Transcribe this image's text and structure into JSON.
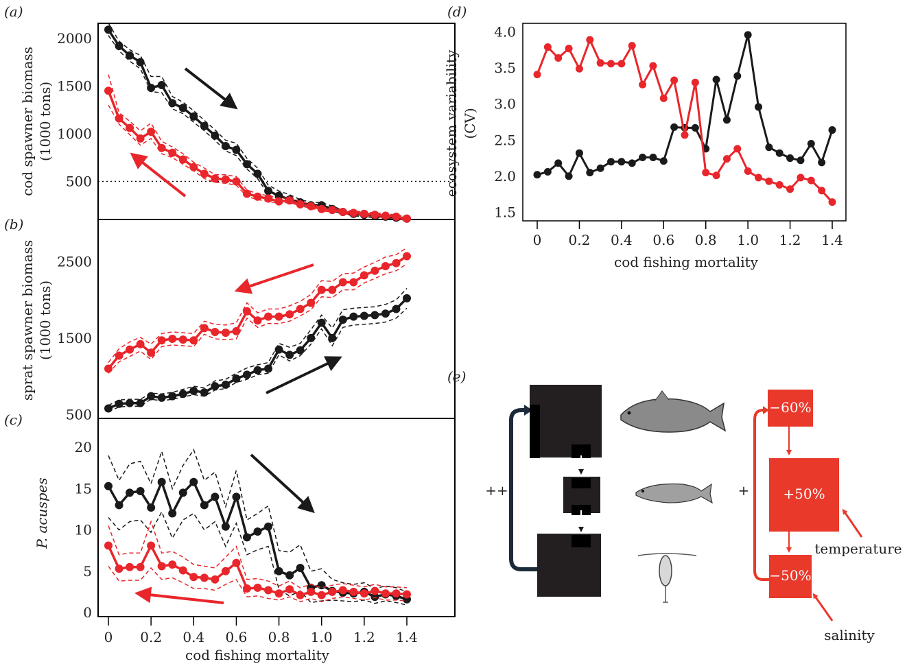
{
  "panels": {
    "a_label": "(a)",
    "b_label": "(b)",
    "c_label": "(c)",
    "d_label": "(d)",
    "e_label": "(e)"
  },
  "colors": {
    "black_series": "#1a1a1a",
    "red_series": "#e8262b",
    "box_black": "#231f20",
    "box_red": "#e8392b"
  },
  "x_values": [
    0,
    0.05,
    0.1,
    0.15,
    0.2,
    0.25,
    0.3,
    0.35,
    0.4,
    0.45,
    0.5,
    0.55,
    0.6,
    0.65,
    0.7,
    0.75,
    0.8,
    0.85,
    0.9,
    0.95,
    1.0,
    1.05,
    1.1,
    1.15,
    1.2,
    1.25,
    1.3,
    1.35,
    1.4
  ],
  "chart_data": [
    {
      "id": "a",
      "type": "line",
      "ylabel_line1": "cod spawner biomass",
      "ylabel_line2": "(1000 tons)",
      "ylim": [
        0,
        2200
      ],
      "yticks": [
        500,
        1000,
        1500,
        2000
      ],
      "reference_line": 500,
      "series": [
        {
          "color": "black",
          "values": [
            2090,
            1920,
            1820,
            1750,
            1480,
            1510,
            1320,
            1270,
            1180,
            1080,
            980,
            870,
            830,
            680,
            580,
            400,
            350,
            310,
            280,
            250,
            250,
            210,
            180,
            160,
            150,
            140,
            130,
            120,
            110
          ],
          "upper": [
            2160,
            1970,
            1880,
            1820,
            1600,
            1600,
            1390,
            1330,
            1240,
            1140,
            1040,
            930,
            900,
            740,
            640,
            460,
            400,
            360,
            310,
            280,
            280,
            240,
            200,
            180,
            170,
            160,
            150,
            140,
            130
          ],
          "lower": [
            2030,
            1870,
            1760,
            1680,
            1440,
            1430,
            1260,
            1210,
            1120,
            1030,
            930,
            820,
            770,
            630,
            530,
            360,
            310,
            280,
            250,
            220,
            220,
            190,
            160,
            140,
            130,
            120,
            110,
            100,
            90
          ]
        },
        {
          "color": "red",
          "values": [
            1450,
            1160,
            1060,
            950,
            1020,
            850,
            800,
            730,
            650,
            580,
            530,
            520,
            500,
            370,
            340,
            320,
            290,
            300,
            260,
            240,
            210,
            200,
            180,
            170,
            160,
            150,
            140,
            130,
            110
          ],
          "upper": [
            1620,
            1220,
            1130,
            1030,
            1110,
            920,
            860,
            790,
            700,
            640,
            570,
            570,
            550,
            410,
            370,
            350,
            320,
            330,
            290,
            260,
            230,
            220,
            200,
            190,
            180,
            170,
            160,
            150,
            130
          ],
          "lower": [
            1300,
            1100,
            990,
            880,
            950,
            790,
            750,
            680,
            610,
            530,
            490,
            480,
            460,
            340,
            310,
            290,
            270,
            280,
            240,
            220,
            190,
            180,
            160,
            150,
            140,
            130,
            120,
            110,
            90
          ]
        }
      ]
    },
    {
      "id": "b",
      "type": "line",
      "ylabel_line1": "sprat spawner biomass",
      "ylabel_line2": "(1000 tons)",
      "ylim": [
        450,
        3050
      ],
      "yticks": [
        500,
        1500,
        2500
      ],
      "series": [
        {
          "color": "black",
          "values": [
            580,
            640,
            650,
            650,
            740,
            720,
            740,
            770,
            810,
            790,
            870,
            890,
            970,
            1020,
            1080,
            1100,
            1350,
            1280,
            1340,
            1500,
            1700,
            1500,
            1740,
            1780,
            1790,
            1800,
            1820,
            1880,
            2020
          ],
          "upper": [
            620,
            690,
            700,
            700,
            780,
            770,
            790,
            830,
            870,
            850,
            940,
            960,
            1040,
            1110,
            1150,
            1180,
            1430,
            1380,
            1430,
            1610,
            1800,
            1630,
            1870,
            1890,
            1900,
            1910,
            1940,
            2000,
            2150
          ],
          "lower": [
            540,
            600,
            610,
            610,
            700,
            680,
            700,
            730,
            760,
            740,
            820,
            840,
            920,
            960,
            1020,
            1040,
            1280,
            1200,
            1270,
            1420,
            1620,
            1400,
            1640,
            1670,
            1680,
            1690,
            1710,
            1760,
            1890
          ]
        },
        {
          "color": "red",
          "values": [
            1100,
            1270,
            1350,
            1420,
            1310,
            1470,
            1490,
            1480,
            1470,
            1630,
            1580,
            1570,
            1590,
            1850,
            1730,
            1780,
            1780,
            1810,
            1880,
            1960,
            2130,
            2130,
            2230,
            2230,
            2320,
            2380,
            2440,
            2480,
            2570
          ],
          "upper": [
            1180,
            1360,
            1450,
            1510,
            1420,
            1560,
            1580,
            1570,
            1560,
            1720,
            1680,
            1670,
            1700,
            1960,
            1830,
            1880,
            1880,
            1920,
            1980,
            2070,
            2250,
            2240,
            2340,
            2350,
            2430,
            2490,
            2560,
            2590,
            2680
          ],
          "lower": [
            1040,
            1190,
            1260,
            1330,
            1220,
            1390,
            1410,
            1400,
            1390,
            1550,
            1490,
            1480,
            1490,
            1760,
            1640,
            1690,
            1690,
            1720,
            1790,
            1870,
            2040,
            2030,
            2130,
            2130,
            2220,
            2280,
            2340,
            2380,
            2470
          ]
        }
      ]
    },
    {
      "id": "c",
      "type": "line",
      "ylabel": "P. acuspes",
      "ylim": [
        -0.5,
        23.5
      ],
      "yticks": [
        0,
        5,
        10,
        15,
        20
      ],
      "series": [
        {
          "color": "black",
          "values": [
            15.3,
            13.0,
            14.5,
            14.7,
            12.7,
            15.8,
            12.0,
            14.5,
            15.8,
            13.0,
            14.0,
            10.4,
            14.0,
            9.1,
            9.8,
            10.4,
            5.0,
            4.5,
            5.4,
            3.0,
            3.3,
            2.6,
            2.4,
            2.3,
            2.5,
            1.9,
            2.2,
            2.0,
            1.6
          ],
          "upper": [
            19.0,
            16.0,
            18.0,
            18.3,
            15.6,
            19.5,
            15.0,
            17.8,
            19.7,
            16.0,
            17.0,
            12.8,
            17.2,
            11.2,
            12.0,
            12.9,
            7.5,
            7.3,
            8.2,
            5.0,
            5.3,
            4.0,
            3.6,
            3.4,
            3.6,
            2.9,
            3.2,
            3.0,
            2.5
          ],
          "lower": [
            11.5,
            10.0,
            11.0,
            11.2,
            9.7,
            12.2,
            9.0,
            11.2,
            12.0,
            10.0,
            11.0,
            8.0,
            10.8,
            7.0,
            7.6,
            8.0,
            2.8,
            2.0,
            2.6,
            1.2,
            1.4,
            1.5,
            1.4,
            1.3,
            1.5,
            1.1,
            1.4,
            1.2,
            0.9
          ]
        },
        {
          "color": "red",
          "values": [
            8.1,
            5.3,
            5.5,
            5.5,
            8.1,
            5.6,
            5.8,
            5.1,
            4.3,
            4.2,
            4.0,
            5.0,
            6.0,
            2.9,
            3.0,
            2.7,
            2.3,
            2.8,
            2.1,
            2.5,
            2.1,
            2.5,
            2.7,
            2.5,
            2.3,
            2.6,
            2.3,
            2.3,
            2.2
          ],
          "upper": [
            10.5,
            7.0,
            7.2,
            7.2,
            11.0,
            7.2,
            7.4,
            6.7,
            5.8,
            5.6,
            5.4,
            6.7,
            8.0,
            4.0,
            4.1,
            3.8,
            3.2,
            3.8,
            3.0,
            3.4,
            3.0,
            3.3,
            3.5,
            3.3,
            3.1,
            3.4,
            3.1,
            3.1,
            3.0
          ],
          "lower": [
            5.6,
            3.8,
            3.9,
            3.9,
            5.4,
            4.0,
            4.2,
            3.6,
            2.9,
            2.9,
            2.7,
            3.4,
            4.0,
            1.9,
            2.0,
            1.7,
            1.5,
            1.9,
            1.3,
            1.7,
            1.3,
            1.7,
            1.9,
            1.7,
            1.5,
            1.8,
            1.5,
            1.5,
            1.4
          ]
        }
      ]
    },
    {
      "id": "d",
      "type": "line",
      "ylabel_line1": "ecosystem variability",
      "ylabel_line2": "(CV)",
      "xlabel": "cod fishing mortality",
      "ylim": [
        1.38,
        4.12
      ],
      "yticks": [
        1.5,
        2.0,
        2.5,
        3.0,
        3.5,
        4.0
      ],
      "series": [
        {
          "color": "black",
          "values": [
            2.02,
            2.06,
            2.18,
            2.0,
            2.32,
            2.05,
            2.11,
            2.2,
            2.2,
            2.18,
            2.26,
            2.26,
            2.21,
            2.68,
            2.67,
            2.67,
            2.38,
            3.34,
            2.78,
            3.39,
            3.96,
            2.96,
            2.4,
            2.32,
            2.25,
            2.22,
            2.45,
            2.19,
            2.64
          ]
        },
        {
          "color": "red",
          "values": [
            3.41,
            3.79,
            3.64,
            3.77,
            3.49,
            3.89,
            3.57,
            3.56,
            3.56,
            3.81,
            3.27,
            3.53,
            3.08,
            3.33,
            2.57,
            3.3,
            2.05,
            2.01,
            2.24,
            2.38,
            2.07,
            1.98,
            1.93,
            1.88,
            1.82,
            1.98,
            1.94,
            1.8,
            1.64
          ]
        }
      ]
    }
  ],
  "x_axis": {
    "xlabel": "cod fishing mortality",
    "xticks": [
      "0",
      "0.2",
      "0.4",
      "0.6",
      "0.8",
      "1.0",
      "1.2",
      "1.4"
    ]
  },
  "diagram_e": {
    "left_label": "++",
    "right_label": "+",
    "box_top": "−60%",
    "box_mid": "+50%",
    "box_bottom": "−50%",
    "temperature": "temperature",
    "salinity": "salinity"
  }
}
